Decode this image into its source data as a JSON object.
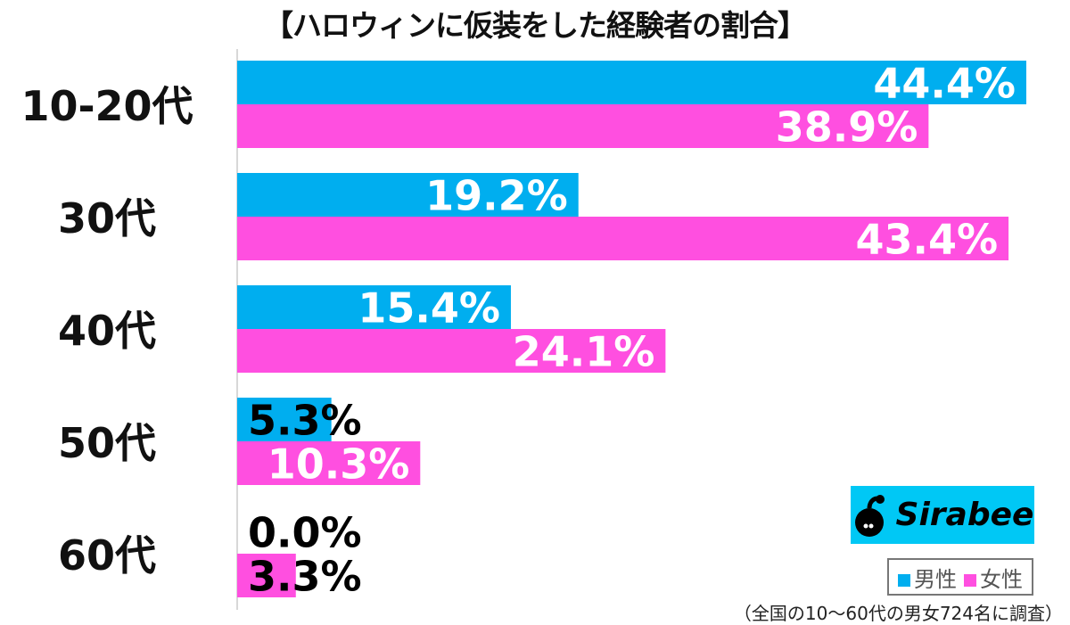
{
  "chart_data": {
    "type": "bar",
    "orientation": "horizontal",
    "title": "【ハロウィンに仮装をした経験者の割合】",
    "categories": [
      "10-20代",
      "30代",
      "40代",
      "50代",
      "60代"
    ],
    "series": [
      {
        "name": "男性",
        "color": "#00aeef",
        "values": [
          44.4,
          19.2,
          15.4,
          5.3,
          0.0
        ]
      },
      {
        "name": "女性",
        "color": "#ff4fe0",
        "values": [
          38.9,
          43.4,
          24.1,
          10.3,
          3.3
        ]
      }
    ],
    "value_suffix": "%",
    "xlim": [
      0,
      45
    ],
    "grid": false,
    "legend_placement": "bottom-right"
  },
  "logo": {
    "text": "Sirabee"
  },
  "note": "（全国の10〜60代の男女724名に調査）"
}
